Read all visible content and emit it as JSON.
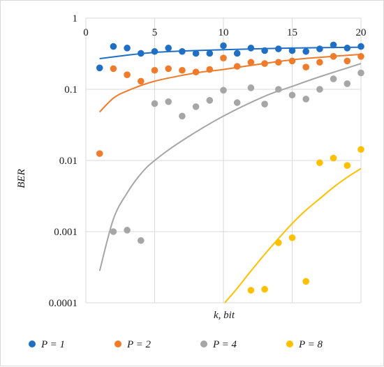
{
  "chart_data": {
    "type": "scatter",
    "xlabel": "k, bit",
    "ylabel": "BER",
    "x_ticks": [
      "0",
      "5",
      "10",
      "15",
      "20"
    ],
    "y_ticks": [
      "1",
      "0.1",
      "0.01",
      "0.001",
      "0.0001"
    ],
    "xlim": [
      0,
      20
    ],
    "ylim": [
      0.0001,
      1
    ],
    "y_scale": "log",
    "grid": true,
    "legend": "bottom",
    "series": [
      {
        "name": "P = 1",
        "color": "#1f6fc5",
        "points": [
          [
            1,
            0.2
          ],
          [
            2,
            0.4
          ],
          [
            3,
            0.38
          ],
          [
            4,
            0.32
          ],
          [
            5,
            0.34
          ],
          [
            6,
            0.38
          ],
          [
            7,
            0.34
          ],
          [
            8,
            0.32
          ],
          [
            9,
            0.32
          ],
          [
            10,
            0.41
          ],
          [
            11,
            0.32
          ],
          [
            12,
            0.38
          ],
          [
            13,
            0.35
          ],
          [
            14,
            0.37
          ],
          [
            15,
            0.35
          ],
          [
            16,
            0.34
          ],
          [
            17,
            0.37
          ],
          [
            18,
            0.42
          ],
          [
            19,
            0.38
          ],
          [
            20,
            0.4
          ]
        ],
        "trend": [
          [
            1,
            0.27
          ],
          [
            5,
            0.33
          ],
          [
            10,
            0.36
          ],
          [
            15,
            0.38
          ],
          [
            20,
            0.39
          ]
        ]
      },
      {
        "name": "P = 2",
        "color": "#f07b2a",
        "points": [
          [
            1,
            0.0125
          ],
          [
            2,
            0.195
          ],
          [
            3,
            0.16
          ],
          [
            4,
            0.13
          ],
          [
            5,
            0.185
          ],
          [
            6,
            0.195
          ],
          [
            7,
            0.185
          ],
          [
            8,
            0.175
          ],
          [
            9,
            0.19
          ],
          [
            10,
            0.275
          ],
          [
            11,
            0.21
          ],
          [
            12,
            0.24
          ],
          [
            13,
            0.23
          ],
          [
            14,
            0.24
          ],
          [
            15,
            0.25
          ],
          [
            16,
            0.205
          ],
          [
            17,
            0.24
          ],
          [
            18,
            0.29
          ],
          [
            19,
            0.25
          ],
          [
            20,
            0.29
          ]
        ],
        "trend": [
          [
            1,
            0.048
          ],
          [
            2,
            0.075
          ],
          [
            3,
            0.095
          ],
          [
            5,
            0.13
          ],
          [
            8,
            0.17
          ],
          [
            10,
            0.19
          ],
          [
            15,
            0.26
          ],
          [
            20,
            0.31
          ]
        ]
      },
      {
        "name": "P = 4",
        "color": "#a6a6a6",
        "points": [
          [
            2,
            0.001
          ],
          [
            3,
            0.00105
          ],
          [
            4,
            0.00075
          ],
          [
            5,
            0.063
          ],
          [
            6,
            0.067
          ],
          [
            7,
            0.042
          ],
          [
            8,
            0.057
          ],
          [
            9,
            0.07
          ],
          [
            10,
            0.097
          ],
          [
            11,
            0.065
          ],
          [
            12,
            0.105
          ],
          [
            13,
            0.062
          ],
          [
            14,
            0.1
          ],
          [
            15,
            0.083
          ],
          [
            16,
            0.073
          ],
          [
            17,
            0.1
          ],
          [
            18,
            0.14
          ],
          [
            19,
            0.12
          ],
          [
            20,
            0.17
          ]
        ],
        "trend": [
          [
            1,
            0.00028
          ],
          [
            2,
            0.0015
          ],
          [
            3,
            0.0035
          ],
          [
            4,
            0.0065
          ],
          [
            5,
            0.01
          ],
          [
            7,
            0.019
          ],
          [
            10,
            0.042
          ],
          [
            13,
            0.08
          ],
          [
            15,
            0.11
          ],
          [
            17,
            0.15
          ],
          [
            20,
            0.23
          ]
        ]
      },
      {
        "name": "P = 8",
        "color": "#ffc000",
        "points": [
          [
            12,
            0.00015
          ],
          [
            13,
            0.000155
          ],
          [
            14,
            0.0007
          ],
          [
            15,
            0.00082
          ],
          [
            16,
            0.0002
          ],
          [
            17,
            0.0093
          ],
          [
            18,
            0.0108
          ],
          [
            19,
            0.0085
          ],
          [
            20,
            0.0143
          ]
        ],
        "trend": [
          [
            10.1,
            0.0001
          ],
          [
            11,
            0.00016
          ],
          [
            12,
            0.00028
          ],
          [
            13,
            0.00048
          ],
          [
            14,
            0.0008
          ],
          [
            15,
            0.0013
          ],
          [
            16,
            0.002
          ],
          [
            17,
            0.0029
          ],
          [
            18,
            0.0042
          ],
          [
            19,
            0.0058
          ],
          [
            20,
            0.0077
          ]
        ]
      }
    ]
  }
}
